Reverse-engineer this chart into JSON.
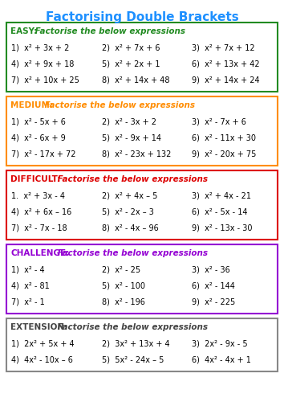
{
  "title": "Factorising Double Brackets",
  "title_color": "#1E90FF",
  "sections": [
    {
      "label": "EASY:",
      "label_color": "#228B22",
      "subtitle": " Factorise the below expressions",
      "border_color": "#228B22",
      "items": [
        [
          "1)  x² + 3x + 2",
          "2)  x² + 7x + 6",
          "3)  x² + 7x + 12"
        ],
        [
          "4)  x² + 9x + 18",
          "5)  x² + 2x + 1",
          "6)  x² + 13x + 42"
        ],
        [
          "7)  x² + 10x + 25",
          "8)  x² + 14x + 48",
          "9)  x² + 14x + 24"
        ]
      ]
    },
    {
      "label": "MEDIUM:",
      "label_color": "#FF8C00",
      "subtitle": " Factorise the below expressions",
      "border_color": "#FF8C00",
      "items": [
        [
          "1)  x² - 5x + 6",
          "2)  x² - 3x + 2",
          "3)  x² - 7x + 6"
        ],
        [
          "4)  x² - 6x + 9",
          "5)  x² - 9x + 14",
          "6)  x² - 11x + 30"
        ],
        [
          "7)  x² - 17x + 72",
          "8)  x² - 23x + 132",
          "9)  x² - 20x + 75"
        ]
      ]
    },
    {
      "label": "DIFFICULT:",
      "label_color": "#DD0000",
      "subtitle": " Factorise the below expressions",
      "border_color": "#DD0000",
      "items": [
        [
          "1.  x² + 3x - 4",
          "2)  x² + 4x – 5",
          "3)  x² + 4x - 21"
        ],
        [
          "4)  x² + 6x – 16",
          "5)  x² - 2x – 3",
          "6)  x² - 5x - 14"
        ],
        [
          "7)  x² - 7x - 18",
          "8)  x² - 4x – 96",
          "9)  x² - 13x - 30"
        ]
      ]
    },
    {
      "label": "CHALLENGE:",
      "label_color": "#9400D3",
      "subtitle": " Factorise the below expressions",
      "border_color": "#9400D3",
      "items": [
        [
          "1)  x² - 4",
          "2)  x² - 25",
          "3)  x² - 36"
        ],
        [
          "4)  x² - 81",
          "5)  x² - 100",
          "6)  x² - 144"
        ],
        [
          "7)  x² - 1",
          "8)  x² - 196",
          "9)  x² - 225"
        ]
      ]
    },
    {
      "label": "EXTENSION:",
      "label_color": "#444444",
      "subtitle": " Factorise the below expressions",
      "border_color": "#888888",
      "items": [
        [
          "1)  2x² + 5x + 4",
          "2)  3x² + 13x + 4",
          "3)  2x² - 9x - 5"
        ],
        [
          "4)  4x² - 10x – 6",
          "5)  5x² - 24x – 5",
          "6)  4x² - 4x + 1"
        ]
      ]
    }
  ],
  "label_char_widths": [
    5,
    7,
    10,
    10,
    10
  ],
  "fig_width": 3.54,
  "fig_height": 5.0,
  "dpi": 100
}
